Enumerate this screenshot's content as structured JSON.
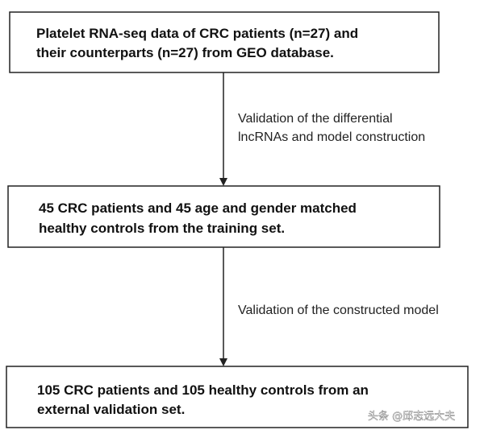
{
  "nodes": [
    {
      "lines": [
        "Platelet RNA-seq data of CRC patients (n=27) and",
        "their counterparts (n=27) from GEO database."
      ]
    },
    {
      "lines": [
        "45 CRC patients and 45 age and gender matched",
        "healthy controls from the training set."
      ]
    },
    {
      "lines": [
        "105 CRC patients and 105 healthy controls from an",
        "external validation set."
      ]
    }
  ],
  "edges": [
    {
      "lines": [
        "Validation of the differential",
        "lncRNAs and model construction"
      ]
    },
    {
      "lines": [
        "Validation of the constructed model"
      ]
    }
  ],
  "watermark": "头条 @邱志远大夫"
}
